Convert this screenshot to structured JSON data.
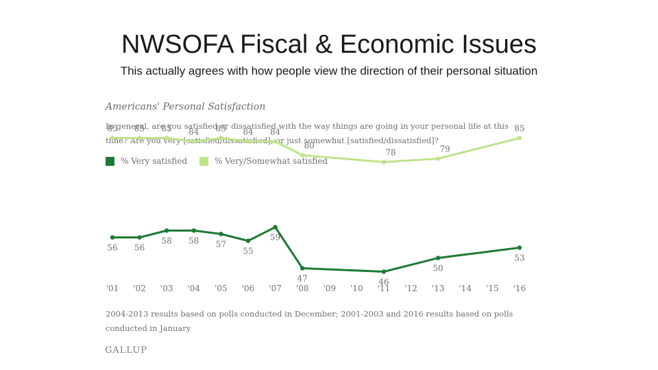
{
  "slide": {
    "title": "NWSOFA Fiscal & Economic Issues",
    "subtitle": "This actually agrees with how people view the direction of their personal situation"
  },
  "chart_data": {
    "type": "line",
    "title": "Americans' Personal Satisfaction",
    "question": "In general, are you satisfied or dissatisfied with the way things are going in your personal life at this time? Are you very [satisfied/dissatisfied], or just somewhat [satisfied/dissatisfied]?",
    "categories": [
      "'01",
      "'02",
      "'03",
      "'04",
      "'05",
      "'06",
      "'07",
      "'08",
      "'09",
      "'10",
      "'11",
      "'12",
      "'13",
      "'14",
      "'15",
      "'16"
    ],
    "series": [
      {
        "name": "% Very satisfied",
        "color": "#1e7a34",
        "values": [
          56,
          56,
          58,
          58,
          57,
          55,
          59,
          47,
          null,
          null,
          46,
          null,
          50,
          null,
          null,
          53
        ]
      },
      {
        "name": "% Very/Somewhat satisfied",
        "color": "#bfe38a",
        "values": [
          85,
          85,
          85,
          84,
          85,
          84,
          84,
          80,
          null,
          null,
          78,
          null,
          79,
          null,
          null,
          85
        ]
      }
    ],
    "grid": false,
    "legend": "top-left",
    "footnote": "2004-2013 results based on polls conducted in December; 2001-2003 and 2016 results based on polls conducted in January",
    "source_logo": "GALLUP"
  }
}
